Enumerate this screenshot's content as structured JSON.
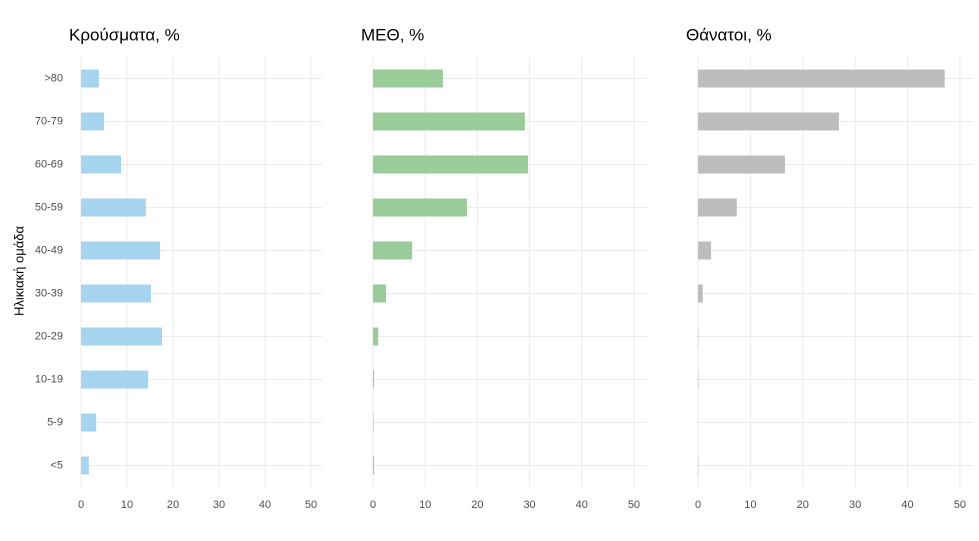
{
  "chart_data": [
    {
      "type": "bar",
      "title": "Κρούσματα, %",
      "y_label": "Ηλικιακή ομάδα",
      "color": "#a6d4ee",
      "categories": [
        ">80",
        "70-79",
        "60-69",
        "50-59",
        "40-49",
        "30-39",
        "20-29",
        "10-19",
        "5-9",
        "<5"
      ],
      "values": [
        3.9,
        5.0,
        8.7,
        14.1,
        17.2,
        15.2,
        17.6,
        14.6,
        3.3,
        1.7
      ],
      "xlim": [
        -0.5,
        52.5
      ],
      "xticks": [
        0,
        10,
        20,
        30,
        40,
        50
      ],
      "grid": true
    },
    {
      "type": "bar",
      "title": "ΜΕΘ, %",
      "color": "#99cc99",
      "values": [
        13.4,
        29.1,
        29.7,
        18.0,
        7.5,
        2.5,
        1.0,
        0.2,
        0.1,
        0.2
      ],
      "xlim": [
        -0.5,
        52.5
      ],
      "xticks": [
        0,
        10,
        20,
        30,
        40,
        50
      ],
      "grid": true
    },
    {
      "type": "bar",
      "title": "Θάνατοι, %",
      "color": "#bdbdbd",
      "values": [
        47.1,
        26.9,
        16.6,
        7.4,
        2.5,
        0.9,
        0.1,
        0.1,
        0,
        0.1
      ],
      "xlim": [
        -0.5,
        52.5
      ],
      "xticks": [
        0,
        10,
        20,
        30,
        40,
        50
      ],
      "grid": true
    }
  ]
}
